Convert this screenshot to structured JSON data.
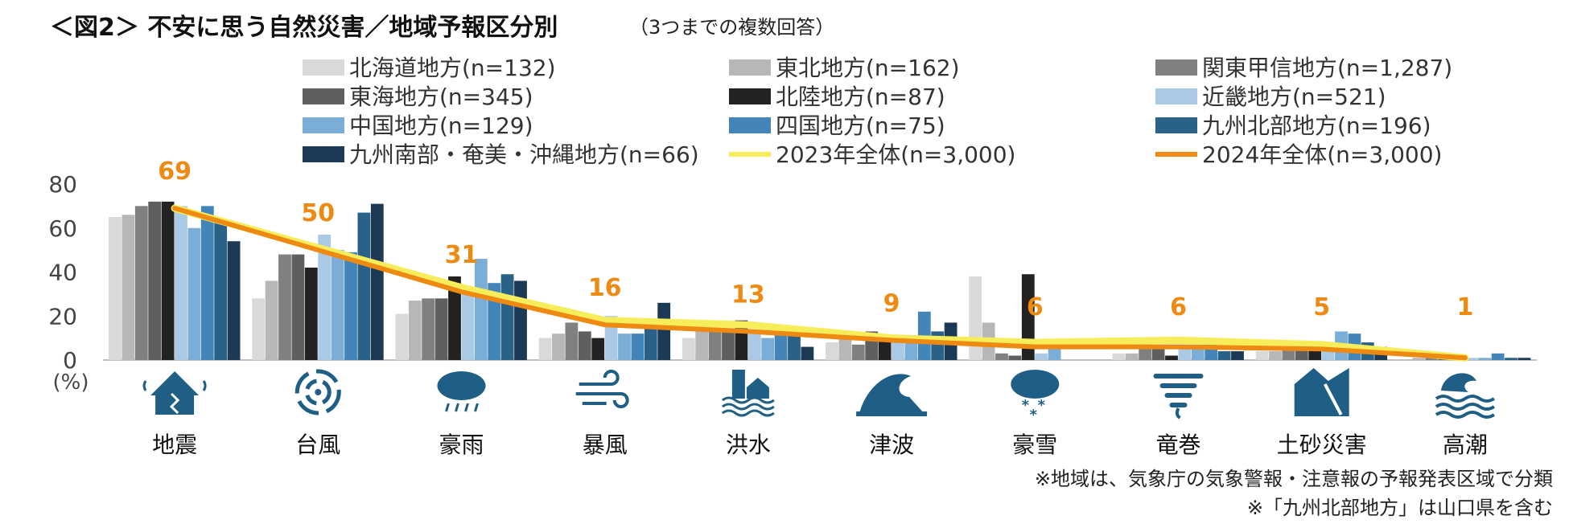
{
  "chart_data": {
    "type": "bar",
    "title": "＜図2＞ 不安に思う自然災害／地域予報区分別",
    "subtitle": "（3つまでの複数回答）",
    "ylabel": "(%)",
    "ylim": [
      0,
      80
    ],
    "yticks": [
      0,
      20,
      40,
      60,
      80
    ],
    "categories": [
      "地震",
      "台風",
      "豪雨",
      "暴風",
      "洪水",
      "津波",
      "豪雪",
      "竜巻",
      "土砂災害",
      "高潮"
    ],
    "icons": [
      "earthquake-icon",
      "typhoon-icon",
      "heavy-rain-icon",
      "windstorm-icon",
      "flood-icon",
      "tsunami-icon",
      "heavy-snow-icon",
      "tornado-icon",
      "landslide-icon",
      "storm-surge-icon"
    ],
    "series": [
      {
        "name": "北海道地方(n=132)",
        "color": "#d9d9d9",
        "values": [
          65,
          28,
          21,
          10,
          10,
          8,
          38,
          3,
          4,
          0
        ]
      },
      {
        "name": "東北地方(n=162)",
        "color": "#b7b7b7",
        "values": [
          66,
          36,
          27,
          12,
          13,
          13,
          17,
          3,
          4,
          1
        ]
      },
      {
        "name": "関東甲信地方(n=1,287)",
        "color": "#808080",
        "values": [
          70,
          48,
          28,
          17,
          14,
          7,
          3,
          7,
          5,
          1
        ]
      },
      {
        "name": "東海地方(n=345)",
        "color": "#5f5f5f",
        "values": [
          72,
          48,
          28,
          13,
          13,
          13,
          2,
          6,
          5,
          1
        ]
      },
      {
        "name": "北陸地方(n=87)",
        "color": "#222222",
        "values": [
          72,
          42,
          38,
          10,
          18,
          9,
          39,
          2,
          6,
          0
        ]
      },
      {
        "name": "近畿地方(n=521)",
        "color": "#a9c9e4",
        "values": [
          70,
          57,
          31,
          20,
          13,
          10,
          3,
          6,
          5,
          1
        ]
      },
      {
        "name": "中国地方(n=129)",
        "color": "#7aaed6",
        "values": [
          60,
          50,
          46,
          12,
          10,
          8,
          8,
          5,
          13,
          1
        ]
      },
      {
        "name": "四国地方(n=75)",
        "color": "#4385b8",
        "values": [
          70,
          49,
          35,
          12,
          16,
          22,
          0,
          7,
          12,
          3
        ]
      },
      {
        "name": "九州北部地方(n=196)",
        "color": "#2a6186",
        "values": [
          64,
          67,
          39,
          17,
          15,
          13,
          0,
          4,
          8,
          1
        ]
      },
      {
        "name": "九州南部・奄美・沖縄地方(n=66)",
        "color": "#1c3956",
        "values": [
          54,
          71,
          36,
          26,
          6,
          17,
          0,
          4,
          6,
          1
        ]
      }
    ],
    "lines": [
      {
        "name": "2023年全体(n=3,000)",
        "color": "#f7ec5a",
        "values": [
          69,
          51,
          33,
          18,
          16,
          10,
          8,
          9,
          7,
          1
        ]
      },
      {
        "name": "2024年全体(n=3,000)",
        "color": "#ee8a12",
        "values": [
          69,
          50,
          31,
          16,
          13,
          9,
          6,
          6,
          5,
          1
        ]
      }
    ],
    "data_labels": [
      "69",
      "50",
      "31",
      "16",
      "13",
      "9",
      "6",
      "6",
      "5",
      "1"
    ],
    "notes": [
      "※地域は、気象庁の気象警報・注意報の予報発表区域で分類",
      "※「九州北部地方」は山口県を含む"
    ]
  }
}
